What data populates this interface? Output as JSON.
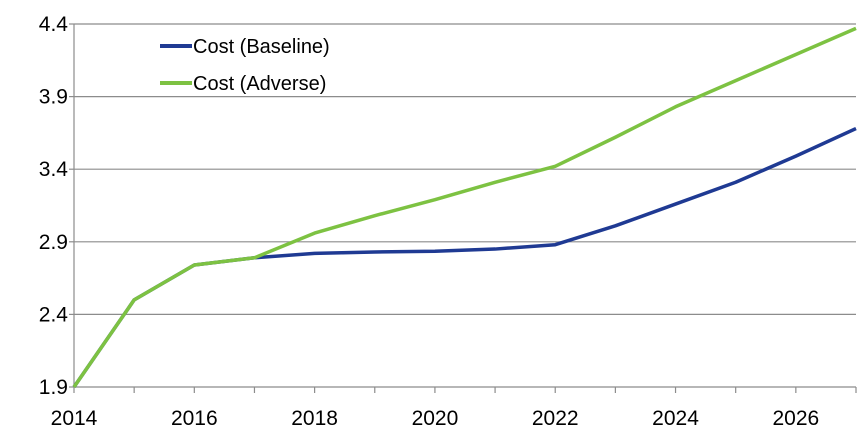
{
  "chart_data": {
    "type": "line",
    "title": "",
    "xlabel": "",
    "ylabel": "",
    "x": [
      2014,
      2015,
      2016,
      2017,
      2018,
      2019,
      2020,
      2021,
      2022,
      2023,
      2024,
      2025,
      2026,
      2027
    ],
    "x_tick_labels": [
      "2014",
      "2016",
      "2018",
      "2020",
      "2022",
      "2024",
      "2026"
    ],
    "y_tick_labels": [
      "1.9",
      "2.4",
      "2.9",
      "3.4",
      "3.9",
      "4.4"
    ],
    "xlim": [
      2014,
      2027
    ],
    "ylim": [
      1.9,
      4.4
    ],
    "grid": "horizontal",
    "legend_position": "top-left",
    "series": [
      {
        "name": "Cost (Baseline)",
        "color": "#1f3a93",
        "values": [
          1.9,
          2.5,
          2.74,
          2.79,
          2.82,
          2.83,
          2.835,
          2.85,
          2.88,
          3.01,
          3.16,
          3.31,
          3.49,
          3.68
        ]
      },
      {
        "name": "Cost (Adverse)",
        "color": "#7dc242",
        "values": [
          1.9,
          2.5,
          2.74,
          2.79,
          2.96,
          3.08,
          3.19,
          3.31,
          3.42,
          3.62,
          3.83,
          4.01,
          4.19,
          4.37
        ]
      }
    ]
  }
}
